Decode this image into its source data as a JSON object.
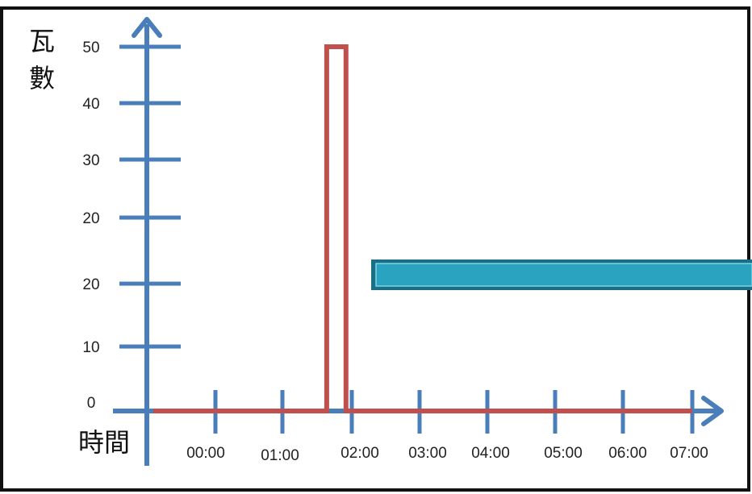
{
  "chart_data": {
    "type": "line",
    "ylabel": "瓦數",
    "xlabel": "時間",
    "x_tick_labels": [
      "00:00",
      "01:00",
      "02:00",
      "03:00",
      "04:00",
      "05:00",
      "06:00",
      "07:00"
    ],
    "y_tick_labels": [
      "0",
      "10",
      "20",
      "20",
      "30",
      "40",
      "50"
    ],
    "series": [
      {
        "color": "#c0504d",
        "points": [
          {
            "x": "23:00",
            "y": 0
          },
          {
            "x": "01:38",
            "y": 0
          },
          {
            "x": "01:38",
            "y": 50
          },
          {
            "x": "01:55",
            "y": 50
          },
          {
            "x": "01:55",
            "y": 0
          },
          {
            "x": "07:00",
            "y": 0
          }
        ]
      }
    ],
    "highlight_bar": {
      "color": "#2aa3c0",
      "y": 20,
      "x_start": "02:30",
      "x_end": "07:00+"
    },
    "axis_color": "#4a7ebb",
    "grid": false
  }
}
